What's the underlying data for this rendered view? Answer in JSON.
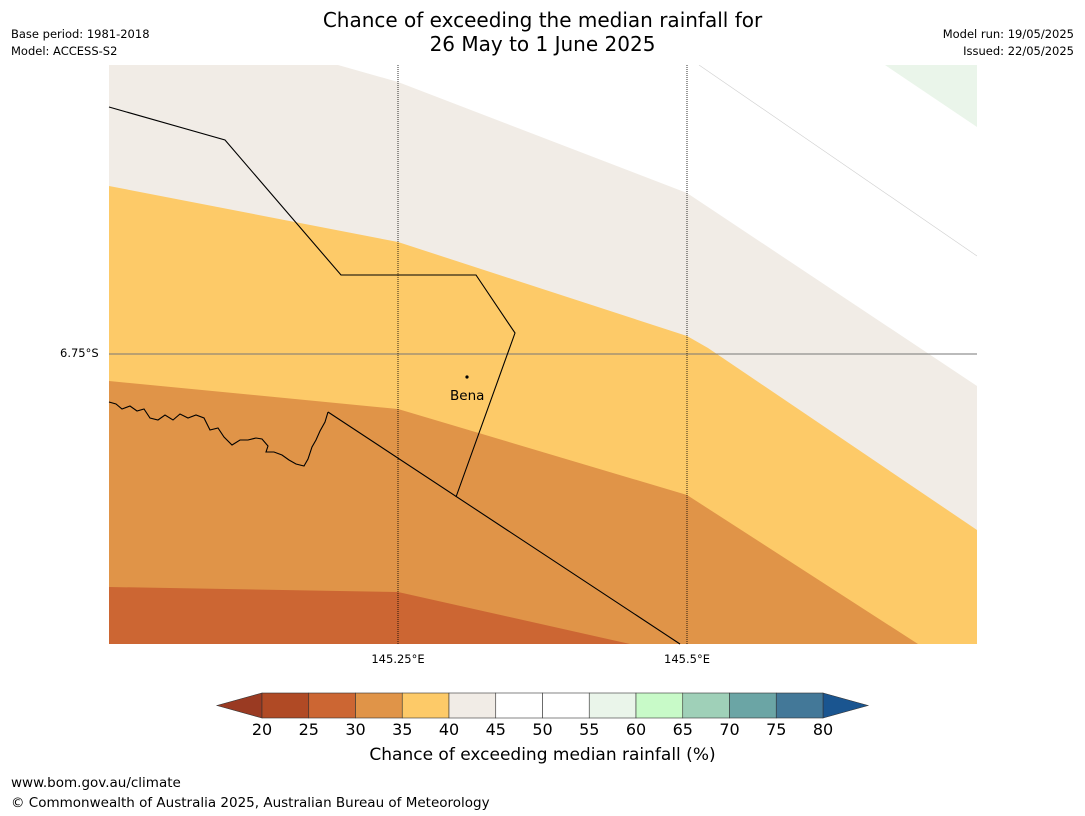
{
  "title": {
    "line1": "Chance of exceeding the median rainfall for",
    "line2": "26 May to 1 June 2025"
  },
  "meta": {
    "base_period": "Base period: 1981-2018",
    "model": "Model: ACCESS-S2",
    "model_run": "Model run: 19/05/2025",
    "issued": "Issued: 22/05/2025"
  },
  "map": {
    "lat_label": "6.75°S",
    "lon_labels": [
      "145.25°E",
      "145.5°E"
    ],
    "town": "Bena",
    "colors": {
      "20-25": "#b04a25",
      "25-30": "#cc6633",
      "30-35": "#e09448",
      "35-40": "#fdca68",
      "40-45": "#f1ece6",
      "45-55": "#ffffff",
      "55-60": "#eaf5ea"
    }
  },
  "colorbar": {
    "ticks": [
      "20",
      "25",
      "30",
      "35",
      "40",
      "45",
      "50",
      "55",
      "60",
      "65",
      "70",
      "75",
      "80"
    ],
    "colors": [
      "#b04a25",
      "#cc6633",
      "#e09448",
      "#fdca68",
      "#f1ece6",
      "#ffffff",
      "#ffffff",
      "#eaf5ea",
      "#c8fac8",
      "#9fd0b8",
      "#6ba5a5",
      "#437898"
    ],
    "under_color": "#9a3a22",
    "over_color": "#1a5590",
    "label": "Chance of exceeding median rainfall (%)"
  },
  "footer": {
    "url": "www.bom.gov.au/climate",
    "copyright": "© Commonwealth of Australia 2025, Australian Bureau of Meteorology"
  }
}
